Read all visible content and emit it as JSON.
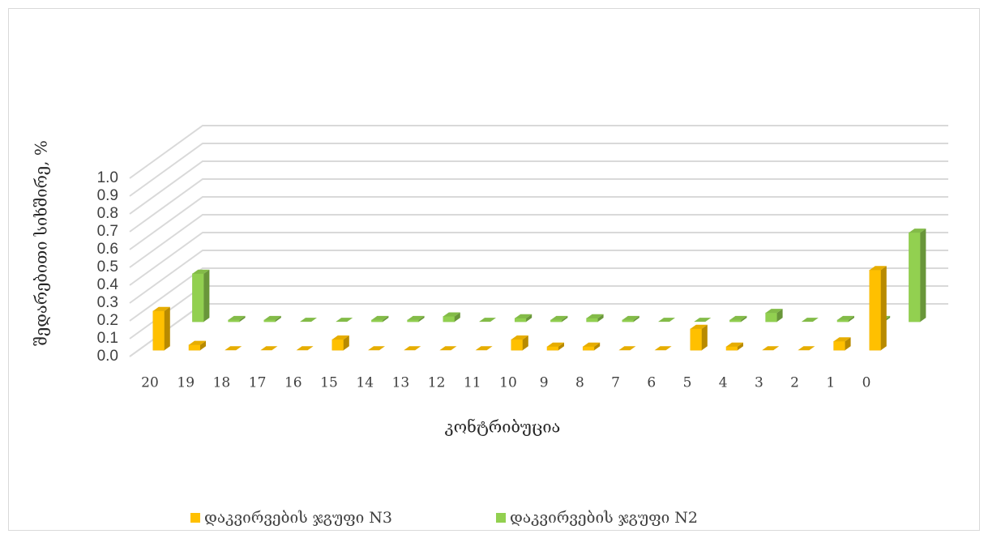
{
  "chart_data": {
    "type": "bar3d",
    "x_label": "კონტრიბუცია",
    "y_label": "შედარებითი სიხშირე, %",
    "categories": [
      "20",
      "19",
      "18",
      "17",
      "16",
      "15",
      "14",
      "13",
      "12",
      "11",
      "10",
      "9",
      "8",
      "7",
      "6",
      "5",
      "4",
      "3",
      "2",
      "1",
      "0"
    ],
    "series": [
      {
        "name": "დაკვირვების ჯგუფი N3",
        "color": "#FFC000",
        "values": [
          0.22,
          0.03,
          0,
          0,
          0,
          0.06,
          0,
          0,
          0,
          0,
          0.06,
          0.02,
          0.02,
          0,
          0,
          0.12,
          0.02,
          0,
          0,
          0.05,
          0.45
        ]
      },
      {
        "name": "დაკვირვების ჯგუფი N2",
        "color": "#92D050",
        "values": [
          0.27,
          0.01,
          0.01,
          0,
          0,
          0.01,
          0.01,
          0.03,
          0,
          0.02,
          0.01,
          0.02,
          0.01,
          0,
          0,
          0.01,
          0.05,
          0,
          0.01,
          0.01,
          0.5
        ]
      }
    ],
    "ylim": [
      0,
      1
    ],
    "yticks": [
      {
        "value": 0,
        "label": "0.0"
      },
      {
        "value": 0.1,
        "label": "0.1"
      },
      {
        "value": 0.2,
        "label": "0.2"
      },
      {
        "value": 0.3,
        "label": "0.3"
      },
      {
        "value": 0.4,
        "label": "0.4"
      },
      {
        "value": 0.5,
        "label": "0.5"
      },
      {
        "value": 0.6,
        "label": "0.6"
      },
      {
        "value": 0.7,
        "label": "0.7"
      },
      {
        "value": 0.8,
        "label": "0.8"
      },
      {
        "value": 0.9,
        "label": "0.9"
      },
      {
        "value": 1,
        "label": "1.0"
      }
    ],
    "grid": true,
    "legend": "bottom"
  }
}
